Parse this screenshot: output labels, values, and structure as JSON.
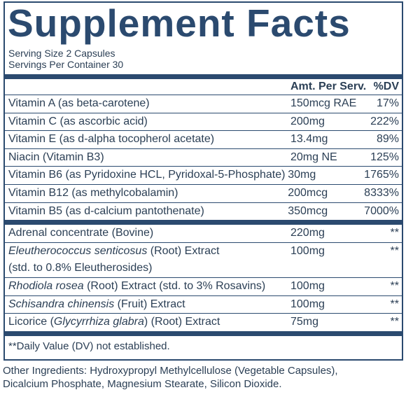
{
  "title": "Supplement Facts",
  "serving": [
    "Serving Size 2 Capsules",
    "Servings Per Container 30"
  ],
  "header": {
    "amount": "Amt. Per Serv.",
    "dv": "%DV"
  },
  "sections": [
    {
      "rows": [
        {
          "name": [
            [
              {
                "text": "Vitamin A (as beta-carotene)"
              }
            ]
          ],
          "amount": "150mcg RAE",
          "dv": "17%"
        },
        {
          "name": [
            [
              {
                "text": "Vitamin C (as ascorbic acid)"
              }
            ]
          ],
          "amount": "200mg",
          "dv": "222%"
        },
        {
          "name": [
            [
              {
                "text": "Vitamin E (as d-alpha tocopherol acetate)"
              }
            ]
          ],
          "amount": "13.4mg",
          "dv": "89%"
        },
        {
          "name": [
            [
              {
                "text": "Niacin (Vitamin B3)"
              }
            ]
          ],
          "amount": "20mg NE",
          "dv": "125%"
        },
        {
          "name": [
            [
              {
                "text": "Vitamin B6 (as Pyridoxine HCL, Pyridoxal-5-Phosphate)"
              }
            ]
          ],
          "amount": "30mg",
          "dv": "1765%"
        },
        {
          "name": [
            [
              {
                "text": "Vitamin B12 (as methylcobalamin)"
              }
            ]
          ],
          "amount": "200mcg",
          "dv": "8333%"
        },
        {
          "name": [
            [
              {
                "text": "Vitamin B5 (as d-calcium pantothenate)"
              }
            ]
          ],
          "amount": "350mcg",
          "dv": "7000%"
        }
      ]
    },
    {
      "rows": [
        {
          "name": [
            [
              {
                "text": "Adrenal concentrate (Bovine)"
              }
            ]
          ],
          "amount": "220mg",
          "dv": "**"
        },
        {
          "name": [
            [
              {
                "text": "Eleutherococcus senticosus",
                "italic": true
              },
              {
                "text": " (Root) Extract"
              }
            ],
            [
              {
                "text": "(std. to 0.8% Eleutherosides)"
              }
            ]
          ],
          "amount": "100mg",
          "dv": "**"
        },
        {
          "name": [
            [
              {
                "text": "Rhodiola rosea",
                "italic": true
              },
              {
                "text": " (Root) Extract (std. to 3% Rosavins)"
              }
            ]
          ],
          "amount": "100mg",
          "dv": "**"
        },
        {
          "name": [
            [
              {
                "text": "Schisandra chinensis",
                "italic": true
              },
              {
                "text": " (Fruit) Extract"
              }
            ]
          ],
          "amount": "100mg",
          "dv": "**"
        },
        {
          "name": [
            [
              {
                "text": "Licorice ("
              },
              {
                "text": "Glycyrrhiza glabra",
                "italic": true
              },
              {
                "text": ") (Root) Extract"
              }
            ]
          ],
          "amount": "75mg",
          "dv": "**"
        }
      ]
    }
  ],
  "footnote": "**Daily Value (DV) not established.",
  "other_ingredients": [
    "Other Ingredients: Hydroxypropyl Methylcellulose (Vegetable Capsules),",
    "Dicalcium Phosphate, Magnesium Stearate, Silicon Dioxide."
  ]
}
